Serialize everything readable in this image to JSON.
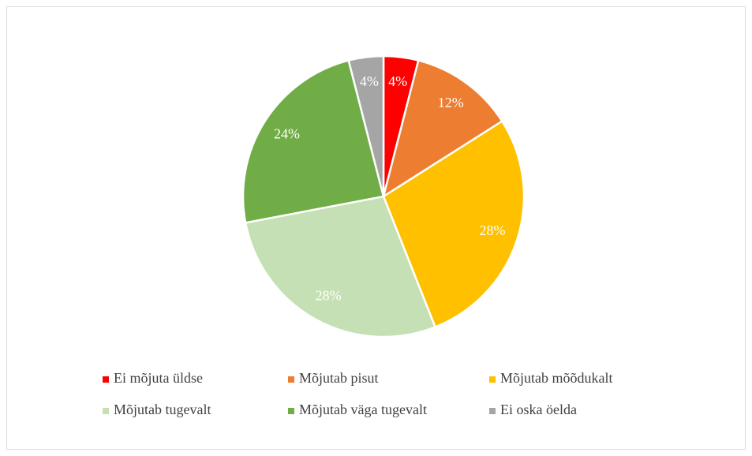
{
  "chart_data": {
    "type": "pie",
    "categories": [
      "Ei mõjuta üldse",
      "Mõjutab pisut",
      "Mõjutab mõõdukalt",
      "Mõjutab tugevalt",
      "Mõjutab väga tugevalt",
      "Ei oska öelda"
    ],
    "values": [
      4,
      12,
      28,
      28,
      24,
      4
    ],
    "value_labels": [
      "4%",
      "12%",
      "28%",
      "28%",
      "24%",
      "4%"
    ],
    "colors": [
      "#ff0000",
      "#ed7d31",
      "#ffc000",
      "#c5e0b4",
      "#70ad47",
      "#a5a5a5"
    ],
    "legend": "bottom"
  }
}
